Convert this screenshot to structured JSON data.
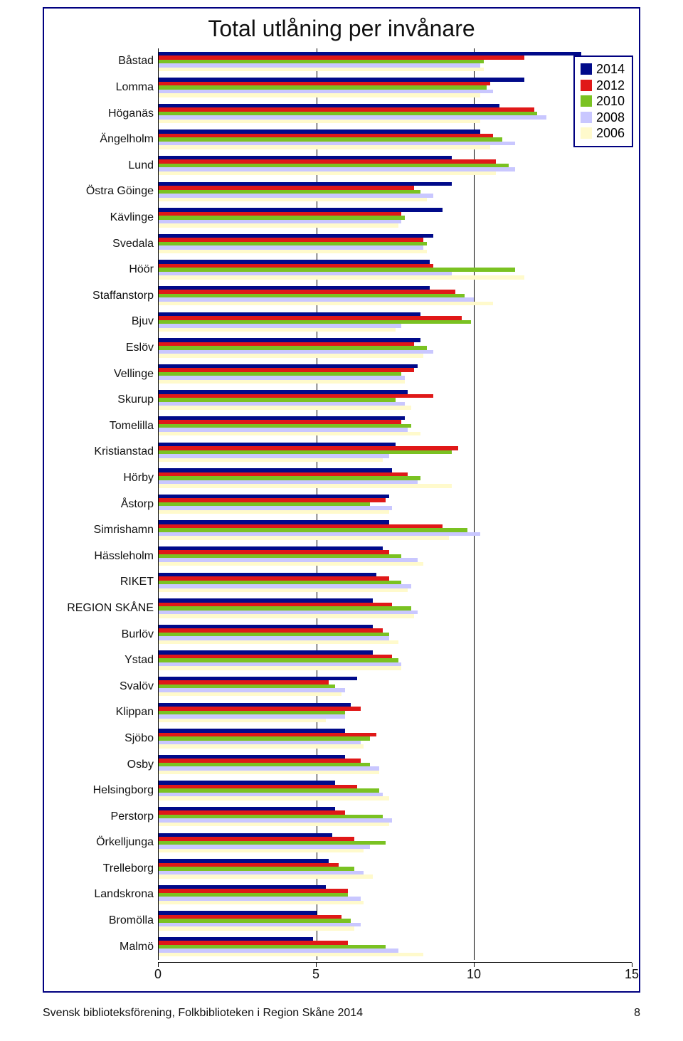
{
  "footer": {
    "text": "Svensk biblioteksförening, Folkbiblioteken i Region Skåne 2014",
    "page_number": "8"
  },
  "chart": {
    "type": "grouped_horizontal_bar",
    "title": "Total utlåning per invånare",
    "title_fontsize": 32,
    "xlim": [
      0,
      15
    ],
    "xticks": [
      0,
      5,
      10,
      15
    ],
    "background_color": "#ffffff",
    "border_color": "#000080",
    "axis_color": "#000000",
    "label_fontsize": 16,
    "tick_fontsize": 18,
    "legend": {
      "position": "top-right",
      "border_color": "#000080",
      "items": [
        {
          "label": "2014",
          "color": "#000a8a"
        },
        {
          "label": "2012",
          "color": "#e01818"
        },
        {
          "label": "2010",
          "color": "#7ac222"
        },
        {
          "label": "2008",
          "color": "#c9c7ff"
        },
        {
          "label": "2006",
          "color": "#fffacc"
        }
      ]
    },
    "series_colors": {
      "2014": "#000a8a",
      "2012": "#e01818",
      "2010": "#7ac222",
      "2008": "#c9c7ff",
      "2006": "#fffacc"
    },
    "categories": [
      {
        "name": "Båstad",
        "values": {
          "2014": 13.4,
          "2012": 11.6,
          "2010": 10.3,
          "2008": 10.2,
          "2006": 10.3
        }
      },
      {
        "name": "Lomma",
        "values": {
          "2014": 11.6,
          "2012": 10.5,
          "2010": 10.4,
          "2008": 10.6,
          "2006": 10.2
        }
      },
      {
        "name": "Höganäs",
        "values": {
          "2014": 10.8,
          "2012": 11.9,
          "2010": 12.0,
          "2008": 12.3,
          "2006": 10.2
        }
      },
      {
        "name": "Ängelholm",
        "values": {
          "2014": 10.2,
          "2012": 10.6,
          "2010": 10.9,
          "2008": 11.3,
          "2006": 10.5
        }
      },
      {
        "name": "Lund",
        "values": {
          "2014": 9.3,
          "2012": 10.7,
          "2010": 11.1,
          "2008": 11.3,
          "2006": 10.7
        }
      },
      {
        "name": "Östra Göinge",
        "values": {
          "2014": 9.3,
          "2012": 8.1,
          "2010": 8.3,
          "2008": 8.7,
          "2006": 8.5
        }
      },
      {
        "name": "Kävlinge",
        "values": {
          "2014": 9.0,
          "2012": 7.7,
          "2010": 7.8,
          "2008": 7.7,
          "2006": 7.6
        }
      },
      {
        "name": "Svedala",
        "values": {
          "2014": 8.7,
          "2012": 8.4,
          "2010": 8.5,
          "2008": 8.4,
          "2006": 8.5
        }
      },
      {
        "name": "Höör",
        "values": {
          "2014": 8.6,
          "2012": 8.7,
          "2010": 11.3,
          "2008": 9.3,
          "2006": 11.6
        }
      },
      {
        "name": "Staffanstorp",
        "values": {
          "2014": 8.6,
          "2012": 9.4,
          "2010": 9.7,
          "2008": 10.0,
          "2006": 10.6
        }
      },
      {
        "name": "Bjuv",
        "values": {
          "2014": 8.3,
          "2012": 9.6,
          "2010": 9.9,
          "2008": 7.7,
          "2006": 7.5
        }
      },
      {
        "name": "Eslöv",
        "values": {
          "2014": 8.3,
          "2012": 8.1,
          "2010": 8.5,
          "2008": 8.7,
          "2006": 8.4
        }
      },
      {
        "name": "Vellinge",
        "values": {
          "2014": 8.2,
          "2012": 8.1,
          "2010": 7.7,
          "2008": 7.8,
          "2006": 7.8
        }
      },
      {
        "name": "Skurup",
        "values": {
          "2014": 7.9,
          "2012": 8.7,
          "2010": 7.5,
          "2008": 7.8,
          "2006": 8.0
        }
      },
      {
        "name": "Tomelilla",
        "values": {
          "2014": 7.8,
          "2012": 7.7,
          "2010": 8.0,
          "2008": 7.9,
          "2006": 8.3
        }
      },
      {
        "name": "Kristianstad",
        "values": {
          "2014": 7.5,
          "2012": 9.5,
          "2010": 9.3,
          "2008": 7.3,
          "2006": 7.1
        }
      },
      {
        "name": "Hörby",
        "values": {
          "2014": 7.4,
          "2012": 7.9,
          "2010": 8.3,
          "2008": 8.2,
          "2006": 9.3
        }
      },
      {
        "name": "Åstorp",
        "values": {
          "2014": 7.3,
          "2012": 7.2,
          "2010": 6.7,
          "2008": 7.4,
          "2006": 7.3
        }
      },
      {
        "name": "Simrishamn",
        "values": {
          "2014": 7.3,
          "2012": 9.0,
          "2010": 9.8,
          "2008": 10.2,
          "2006": 9.2
        }
      },
      {
        "name": "Hässleholm",
        "values": {
          "2014": 7.1,
          "2012": 7.3,
          "2010": 7.7,
          "2008": 8.2,
          "2006": 8.4
        }
      },
      {
        "name": "RIKET",
        "values": {
          "2014": 6.9,
          "2012": 7.3,
          "2010": 7.7,
          "2008": 8.0,
          "2006": 7.9
        }
      },
      {
        "name": "REGION SKÅNE",
        "values": {
          "2014": 6.8,
          "2012": 7.4,
          "2010": 8.0,
          "2008": 8.2,
          "2006": 8.1
        }
      },
      {
        "name": "Burlöv",
        "values": {
          "2014": 6.8,
          "2012": 7.1,
          "2010": 7.3,
          "2008": 7.3,
          "2006": 7.6
        }
      },
      {
        "name": "Ystad",
        "values": {
          "2014": 6.8,
          "2012": 7.4,
          "2010": 7.6,
          "2008": 7.7,
          "2006": 7.7
        }
      },
      {
        "name": "Svalöv",
        "values": {
          "2014": 6.3,
          "2012": 5.4,
          "2010": 5.6,
          "2008": 5.9,
          "2006": 5.8
        }
      },
      {
        "name": "Klippan",
        "values": {
          "2014": 6.1,
          "2012": 6.4,
          "2010": 5.9,
          "2008": 5.9,
          "2006": 5.3
        }
      },
      {
        "name": "Sjöbo",
        "values": {
          "2014": 5.9,
          "2012": 6.9,
          "2010": 6.7,
          "2008": 6.4,
          "2006": 6.5
        }
      },
      {
        "name": "Osby",
        "values": {
          "2014": 5.9,
          "2012": 6.4,
          "2010": 6.7,
          "2008": 7.0,
          "2006": 7.0
        }
      },
      {
        "name": "Helsingborg",
        "values": {
          "2014": 5.6,
          "2012": 6.3,
          "2010": 7.0,
          "2008": 7.1,
          "2006": 7.3
        }
      },
      {
        "name": "Perstorp",
        "values": {
          "2014": 5.6,
          "2012": 5.9,
          "2010": 7.1,
          "2008": 7.4,
          "2006": 7.3
        }
      },
      {
        "name": "Örkelljunga",
        "values": {
          "2014": 5.5,
          "2012": 6.2,
          "2010": 7.2,
          "2008": 6.7,
          "2006": 6.5
        }
      },
      {
        "name": "Trelleborg",
        "values": {
          "2014": 5.4,
          "2012": 5.7,
          "2010": 6.2,
          "2008": 6.5,
          "2006": 6.8
        }
      },
      {
        "name": "Landskrona",
        "values": {
          "2014": 5.3,
          "2012": 6.0,
          "2010": 6.0,
          "2008": 6.4,
          "2006": 6.5
        }
      },
      {
        "name": "Bromölla",
        "values": {
          "2014": 5.0,
          "2012": 5.8,
          "2010": 6.1,
          "2008": 6.4,
          "2006": 6.2
        }
      },
      {
        "name": "Malmö",
        "values": {
          "2014": 4.9,
          "2012": 6.0,
          "2010": 7.2,
          "2008": 7.6,
          "2006": 8.4
        }
      }
    ],
    "bar_inner_gap_ratio": 0.0,
    "group_gap_ratio": 0.25
  }
}
